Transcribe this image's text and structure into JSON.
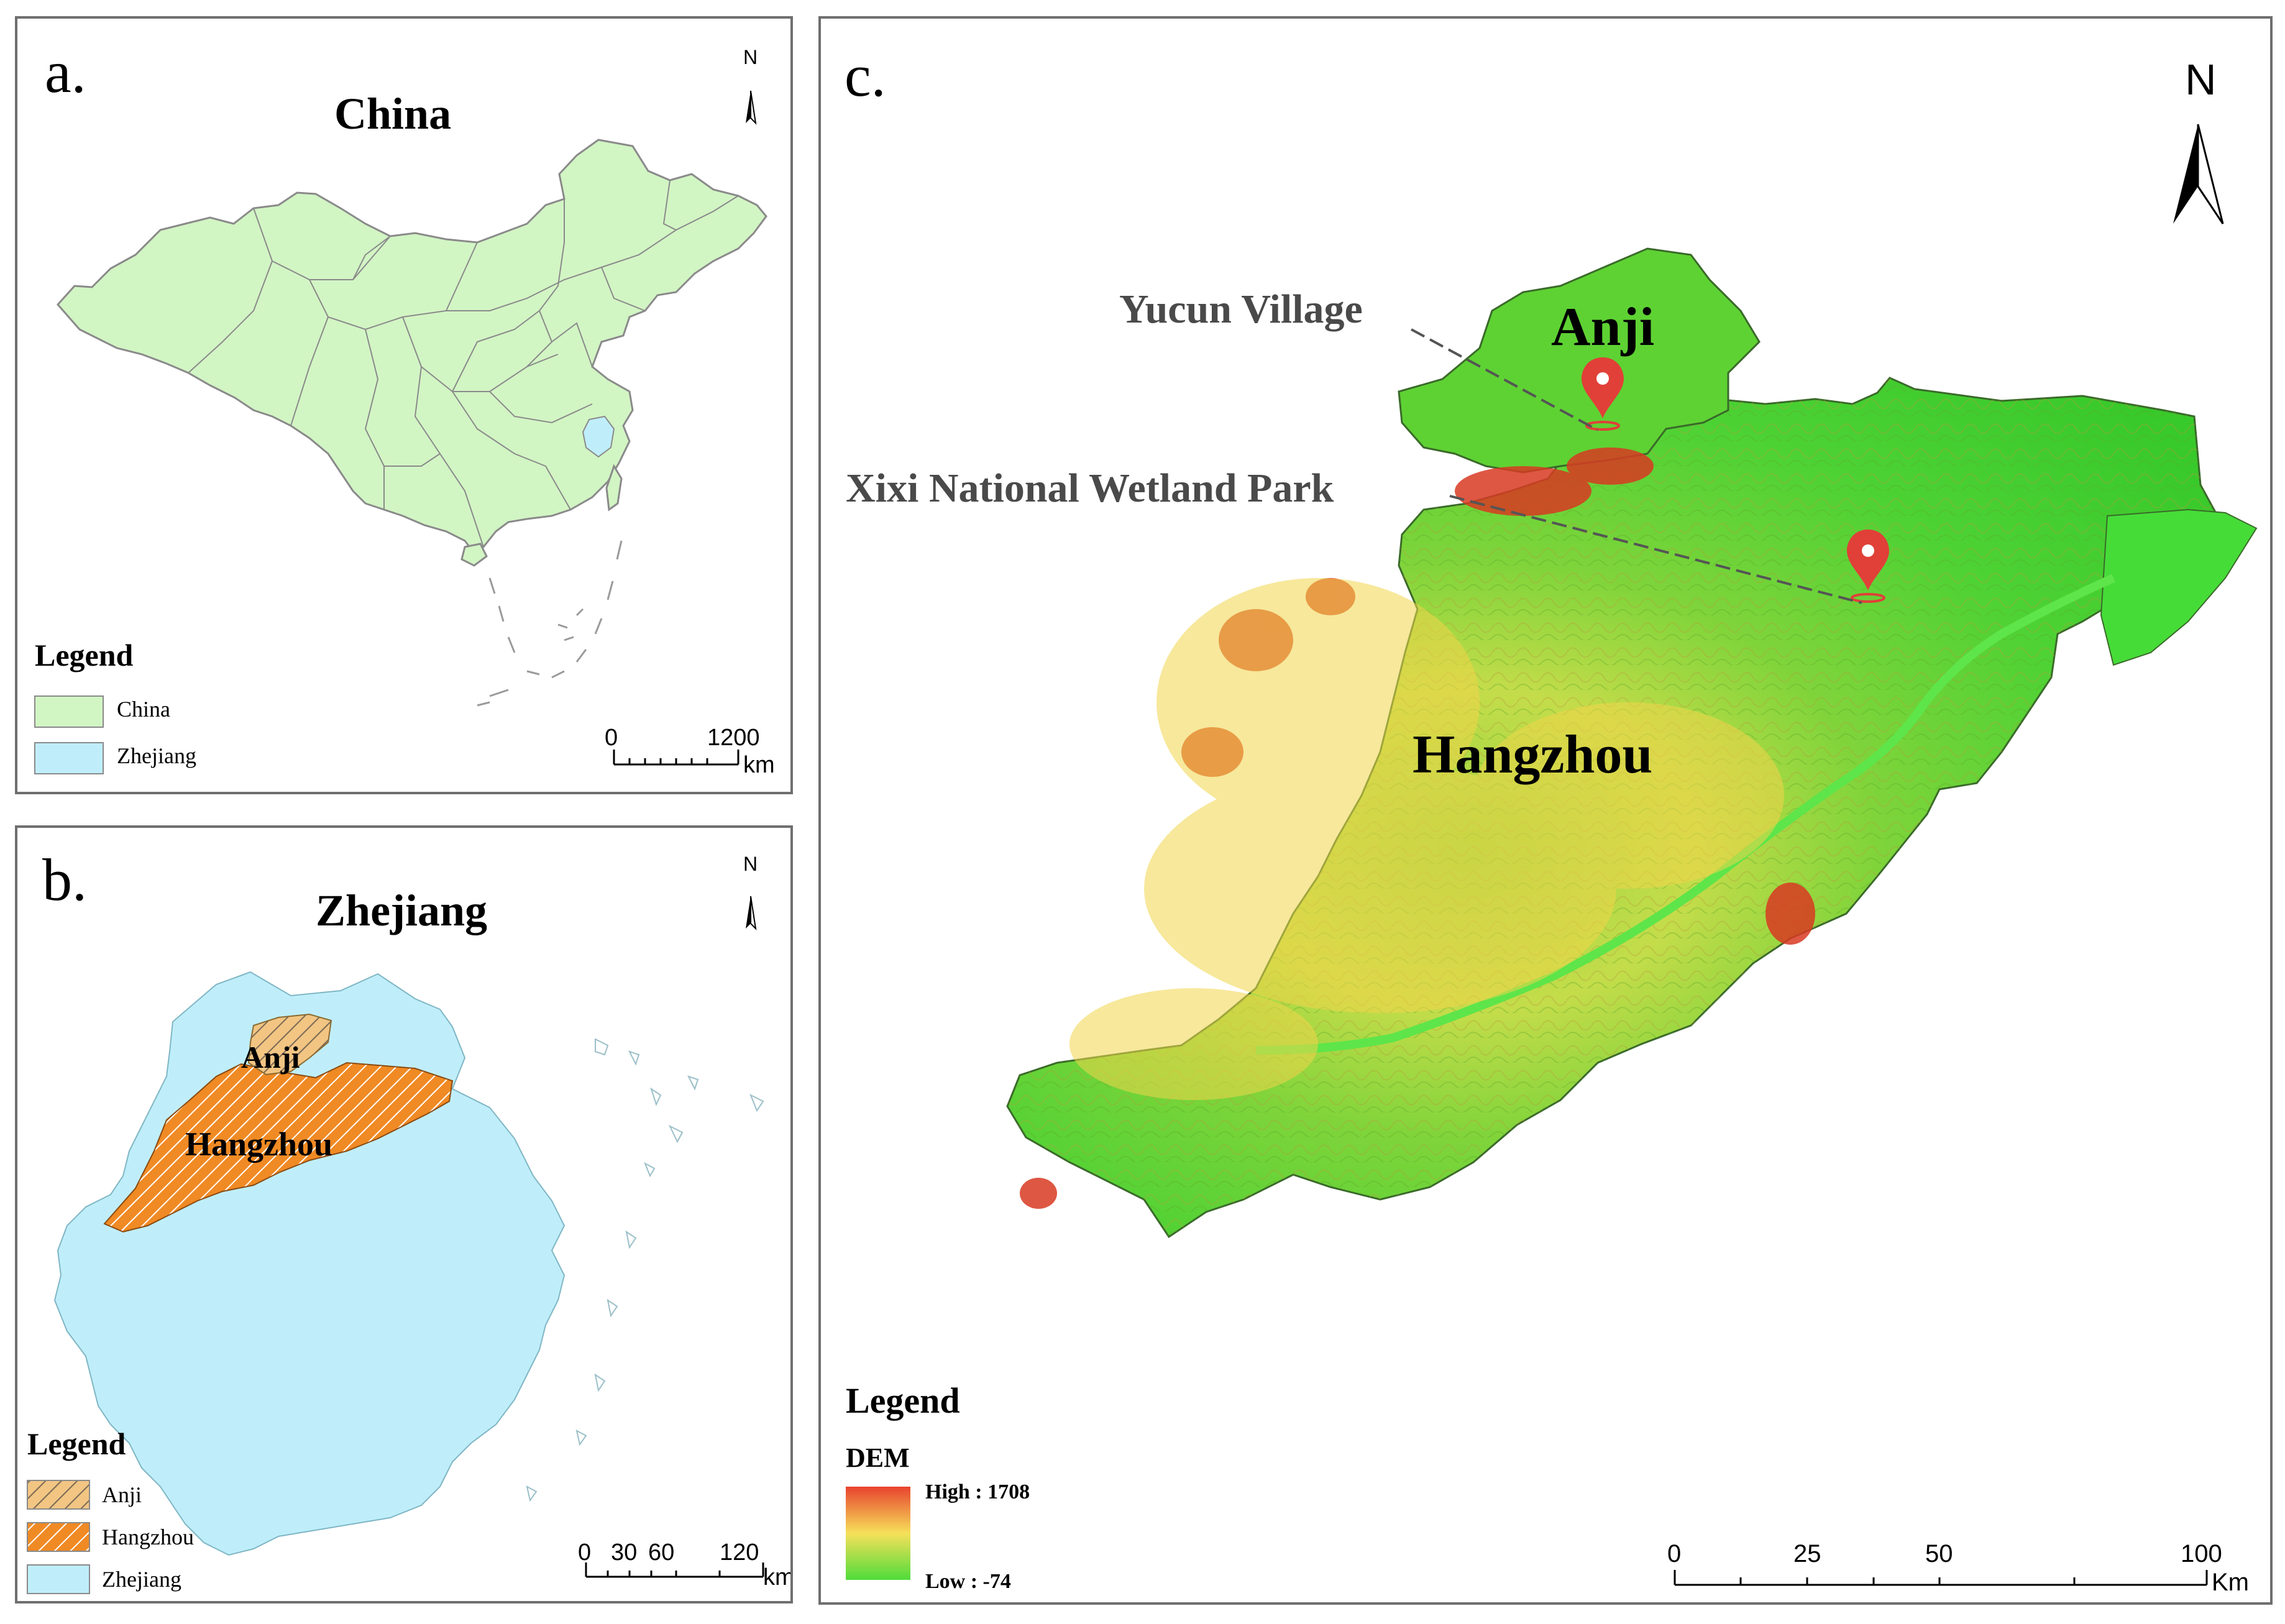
{
  "panel_a": {
    "letter": "a.",
    "title": "China",
    "north": "N",
    "legend_title": "Legend",
    "legend": [
      {
        "label": "China",
        "color": "#d2f5c4"
      },
      {
        "label": "Zhejiang",
        "color": "#bfeefa"
      }
    ],
    "scale": {
      "start": "0",
      "end": "1200",
      "unit": "km"
    }
  },
  "panel_b": {
    "letter": "b.",
    "title": "Zhejiang",
    "north": "N",
    "labels": {
      "anji": "Anji",
      "hangzhou": "Hangzhou"
    },
    "legend_title": "Legend",
    "legend": [
      {
        "label": "Anji",
        "color": "#f2c583",
        "pattern": "hatch"
      },
      {
        "label": "Hangzhou",
        "color": "#f08a24",
        "pattern": "hatch"
      },
      {
        "label": "Zhejiang",
        "color": "#bfeefa"
      }
    ],
    "scale": {
      "ticks": [
        "0",
        "30",
        "60",
        "120"
      ],
      "unit": "km"
    }
  },
  "panel_c": {
    "letter": "c.",
    "north": "N",
    "labels": {
      "anji": "Anji",
      "hangzhou": "Hangzhou"
    },
    "markers": [
      {
        "label": "Yucun Village",
        "icon": "map-pin-icon"
      },
      {
        "label": "Xixi National Wetland Park",
        "icon": "map-pin-icon"
      }
    ],
    "legend_title": "Legend",
    "dem_title": "DEM",
    "dem_high": "High : 1708",
    "dem_low": "Low : -74",
    "dem_colors": {
      "high": "#e8432e",
      "mid": "#f6e05a",
      "low": "#4fdc3a"
    },
    "marker_color": "#e04038",
    "scale": {
      "ticks": [
        "0",
        "25",
        "50",
        "100"
      ],
      "unit": "Km"
    }
  }
}
